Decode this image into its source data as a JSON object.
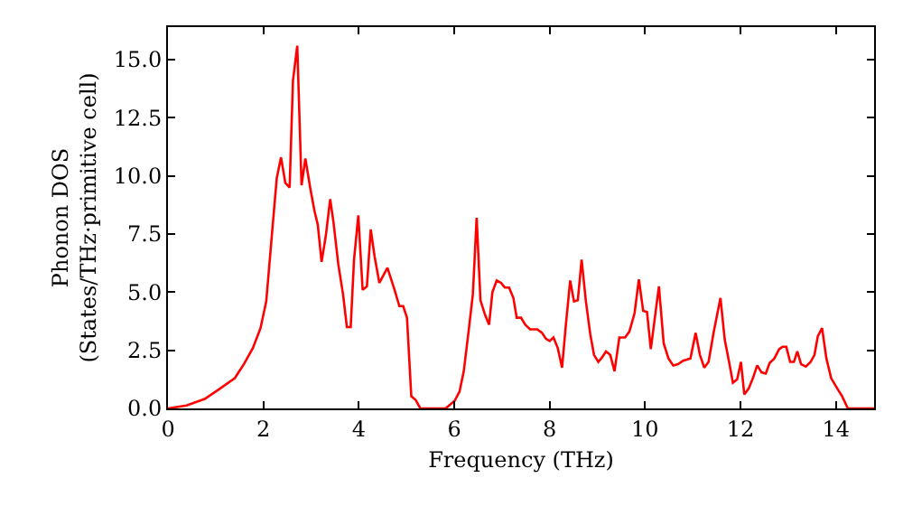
{
  "chart_data": {
    "type": "line",
    "xlabel": "Frequency (THz)",
    "ylabel": "Phonon DOS\n(States/THz·primitive cell)",
    "x": [
      0,
      0.39,
      0.77,
      1.09,
      1.4,
      1.59,
      1.78,
      1.94,
      2.06,
      2.18,
      2.28,
      2.37,
      2.46,
      2.55,
      2.62,
      2.71,
      2.8,
      2.88,
      2.98,
      3.07,
      3.14,
      3.22,
      3.31,
      3.4,
      3.47,
      3.57,
      3.67,
      3.75,
      3.83,
      3.9,
      3.99,
      4.08,
      4.17,
      4.25,
      4.33,
      4.43,
      4.6,
      4.75,
      4.85,
      4.93,
      5.01,
      5.1,
      5.19,
      5.29,
      5.82,
      6.01,
      6.11,
      6.2,
      6.3,
      6.39,
      6.47,
      6.55,
      6.65,
      6.73,
      6.8,
      6.89,
      6.98,
      7.06,
      7.15,
      7.24,
      7.31,
      7.4,
      7.49,
      7.59,
      7.74,
      7.84,
      7.92,
      8.0,
      8.08,
      8.17,
      8.26,
      8.34,
      8.43,
      8.51,
      8.59,
      8.67,
      8.76,
      8.85,
      8.93,
      9.02,
      9.1,
      9.18,
      9.27,
      9.36,
      9.46,
      9.58,
      9.67,
      9.78,
      9.87,
      9.96,
      10.04,
      10.12,
      10.29,
      10.39,
      10.49,
      10.59,
      10.69,
      10.8,
      10.95,
      11.06,
      11.15,
      11.24,
      11.33,
      11.44,
      11.58,
      11.67,
      11.76,
      11.84,
      11.93,
      12.01,
      12.08,
      12.17,
      12.26,
      12.35,
      12.44,
      12.53,
      12.61,
      12.71,
      12.81,
      12.88,
      12.96,
      13.04,
      13.12,
      13.19,
      13.27,
      13.37,
      13.47,
      13.55,
      13.62,
      13.71,
      13.8,
      13.9,
      14.03,
      14.13,
      14.25,
      14.8
    ],
    "series": [
      {
        "color": "#ff0000",
        "values": [
          0,
          0.13,
          0.41,
          0.85,
          1.3,
          1.9,
          2.6,
          3.45,
          4.6,
          7.5,
          9.9,
          10.8,
          9.7,
          9.5,
          14.1,
          15.6,
          9.6,
          10.75,
          9.5,
          8.5,
          7.9,
          6.3,
          7.45,
          9.0,
          8.0,
          6.2,
          4.9,
          3.5,
          3.5,
          6.4,
          8.3,
          5.1,
          5.25,
          7.7,
          6.55,
          5.4,
          6.05,
          5.1,
          4.4,
          4.4,
          3.9,
          0.52,
          0.37,
          0,
          0,
          0.33,
          0.72,
          1.6,
          3.3,
          4.9,
          8.2,
          4.65,
          4.0,
          3.6,
          5.0,
          5.5,
          5.4,
          5.2,
          5.2,
          4.75,
          3.9,
          3.9,
          3.6,
          3.4,
          3.4,
          3.25,
          3.0,
          2.9,
          3.05,
          2.6,
          1.75,
          3.6,
          5.5,
          4.6,
          4.65,
          6.4,
          4.6,
          3.2,
          2.3,
          2.0,
          2.2,
          2.45,
          2.3,
          1.6,
          3.05,
          3.05,
          3.3,
          4.1,
          5.55,
          4.2,
          4.15,
          2.55,
          5.25,
          2.8,
          2.15,
          1.85,
          1.9,
          2.05,
          2.15,
          3.25,
          2.3,
          1.75,
          2.0,
          3.3,
          4.75,
          2.95,
          2.0,
          1.1,
          1.25,
          2.0,
          0.6,
          0.85,
          1.3,
          1.85,
          1.55,
          1.5,
          1.95,
          2.15,
          2.55,
          2.65,
          2.65,
          2.0,
          2.0,
          2.45,
          1.9,
          1.8,
          2.0,
          2.3,
          3.1,
          3.45,
          2.15,
          1.3,
          0.85,
          0.52,
          0,
          0
        ]
      }
    ],
    "xlim": [
      0,
      14.8
    ],
    "ylim": [
      0,
      16.4
    ],
    "xticks": [
      0,
      2,
      4,
      6,
      8,
      10,
      12,
      14
    ],
    "yticks": [
      {
        "value": 0,
        "label": "0.0"
      },
      {
        "value": 2.5,
        "label": "2.5"
      },
      {
        "value": 5,
        "label": "5.0"
      },
      {
        "value": 7.5,
        "label": "7.5"
      },
      {
        "value": 10,
        "label": "10.0"
      },
      {
        "value": 12.5,
        "label": "12.5"
      },
      {
        "value": 15,
        "label": "15.0"
      }
    ],
    "marker": "none",
    "line_style": "solid"
  }
}
